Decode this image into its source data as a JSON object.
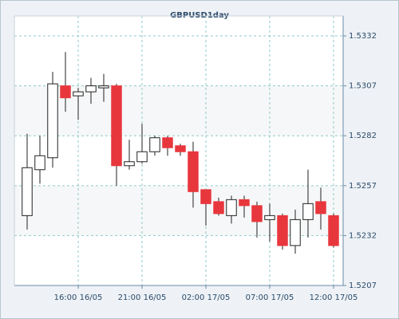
{
  "chart_data": {
    "type": "candlestick",
    "title": "GBPUSD1day",
    "categories": [
      null,
      null,
      null,
      null,
      "16:00 16/05",
      null,
      null,
      null,
      null,
      "21:00 16/05",
      null,
      null,
      null,
      null,
      "02:00 17/05",
      null,
      null,
      null,
      null,
      "07:00 17/05",
      null,
      null,
      null,
      null,
      "12:00 17/05"
    ],
    "open": [
      1.5242,
      1.5265,
      1.5271,
      1.5307,
      1.5302,
      1.5304,
      1.5306,
      1.5307,
      1.5267,
      1.5269,
      1.5274,
      1.5281,
      1.5277,
      1.5274,
      1.5255,
      1.5249,
      1.5242,
      1.525,
      1.5247,
      1.524,
      1.5242,
      1.5227,
      1.524,
      1.5249,
      1.5242
    ],
    "high": [
      1.5283,
      1.5282,
      1.5314,
      1.5324,
      1.5306,
      1.5311,
      1.5313,
      1.5308,
      1.528,
      1.5288,
      1.5282,
      1.5282,
      1.5278,
      1.5279,
      1.5255,
      1.5251,
      1.5252,
      1.5252,
      1.5249,
      1.5248,
      1.5243,
      1.5245,
      1.5265,
      1.5256,
      1.5243
    ],
    "low": [
      1.5235,
      1.5258,
      1.5266,
      1.5294,
      1.529,
      1.5298,
      1.5299,
      1.5257,
      1.5265,
      1.5268,
      1.5272,
      1.5272,
      1.5272,
      1.5246,
      1.5237,
      1.5242,
      1.5238,
      1.5241,
      1.5231,
      1.5229,
      1.5225,
      1.5223,
      1.5231,
      1.5235,
      1.5226
    ],
    "close": [
      1.5266,
      1.5272,
      1.5308,
      1.5301,
      1.5304,
      1.5307,
      1.5307,
      1.5267,
      1.5269,
      1.5274,
      1.5281,
      1.5276,
      1.5274,
      1.5254,
      1.5248,
      1.5243,
      1.525,
      1.5247,
      1.5239,
      1.5242,
      1.5227,
      1.524,
      1.5248,
      1.5243,
      1.5227
    ],
    "up_color": "#ffffff",
    "down_color": "#e8363d",
    "ylim": [
      1.5207,
      1.5342
    ],
    "yticks": [
      1.5207,
      1.5232,
      1.5257,
      1.5282,
      1.5307,
      1.5332
    ],
    "grid": true
  }
}
